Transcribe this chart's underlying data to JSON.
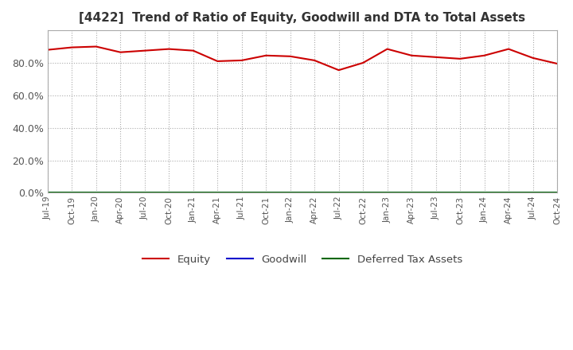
{
  "title": "[4422]  Trend of Ratio of Equity, Goodwill and DTA to Total Assets",
  "title_fontsize": 11,
  "ylim": [
    0,
    100
  ],
  "yticks": [
    0,
    20,
    40,
    60,
    80
  ],
  "background_color": "#ffffff",
  "grid_color": "#aaaaaa",
  "x_labels": [
    "Jul-19",
    "Oct-19",
    "Jan-20",
    "Apr-20",
    "Jul-20",
    "Oct-20",
    "Jan-21",
    "Apr-21",
    "Jul-21",
    "Oct-21",
    "Jan-22",
    "Apr-22",
    "Jul-22",
    "Oct-22",
    "Jan-23",
    "Apr-23",
    "Jul-23",
    "Oct-23",
    "Jan-24",
    "Apr-24",
    "Jul-24",
    "Oct-24"
  ],
  "equity": [
    88.0,
    89.5,
    90.0,
    86.5,
    87.5,
    88.5,
    87.5,
    81.0,
    81.5,
    84.5,
    84.0,
    81.5,
    75.5,
    80.0,
    88.5,
    84.5,
    83.5,
    82.5,
    84.5,
    88.5,
    83.0,
    79.5
  ],
  "goodwill": [
    0.0,
    0.0,
    0.0,
    0.0,
    0.0,
    0.0,
    0.0,
    0.0,
    0.0,
    0.0,
    0.0,
    0.0,
    0.0,
    0.0,
    0.0,
    0.0,
    0.0,
    0.0,
    0.0,
    0.0,
    0.0,
    0.0
  ],
  "dta": [
    0.0,
    0.0,
    0.0,
    0.0,
    0.0,
    0.0,
    0.0,
    0.0,
    0.0,
    0.0,
    0.0,
    0.0,
    0.0,
    0.0,
    0.0,
    0.0,
    0.0,
    0.0,
    0.0,
    0.0,
    0.0,
    0.0
  ],
  "equity_color": "#cc0000",
  "goodwill_color": "#0000cc",
  "dta_color": "#006600",
  "legend_labels": [
    "Equity",
    "Goodwill",
    "Deferred Tax Assets"
  ]
}
